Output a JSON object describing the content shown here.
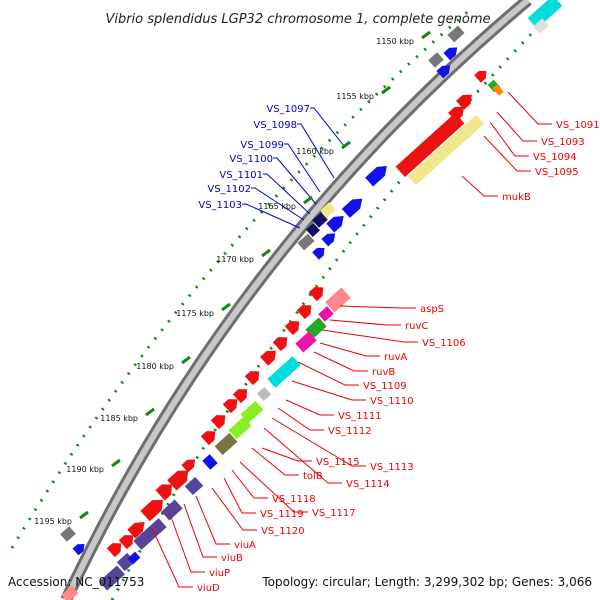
{
  "title": "Vibrio splendidus LGP32 chromosome 1, complete genome",
  "footer": {
    "accession": "Accession: NC_011753",
    "topology": "Topology: circular; Length: 3,299,302 bp; Genes: 3,066"
  },
  "colors": {
    "red": "#ee1111",
    "blue": "#1111ee",
    "navy": "#111166",
    "gray": "#777777",
    "khaki": "#f0e68c",
    "green": "#22aa22",
    "lime": "#88ee22",
    "magenta": "#ee11aa",
    "cyan": "#00dddd",
    "pink": "#ff8888",
    "purple": "#554499",
    "tick": "#118811"
  },
  "kbp_ticks": [
    "1150 kbp",
    "1155 kbp",
    "1160 kbp",
    "1165 kbp",
    "1170 kbp",
    "1175 kbp",
    "1180 kbp",
    "1185 kbp",
    "1190 kbp",
    "1195 kbp"
  ],
  "labels_right": [
    "VS_1091",
    "VS_1093",
    "VS_1094",
    "VS_1095",
    "mukB",
    "aspS",
    "ruvC",
    "VS_1106",
    "ruvA",
    "ruvB",
    "VS_1109",
    "VS_1110",
    "VS_1111",
    "VS_1112",
    "VS_1113",
    "VS_1114",
    "VS_1115",
    "tolB",
    "VS_1117",
    "VS_1118",
    "VS_1119",
    "VS_1120",
    "viuA",
    "viuB",
    "viuP",
    "viuD"
  ],
  "labels_left": [
    "VS_1097",
    "VS_1098",
    "VS_1099",
    "VS_1100",
    "VS_1101",
    "VS_1102",
    "VS_1103"
  ]
}
